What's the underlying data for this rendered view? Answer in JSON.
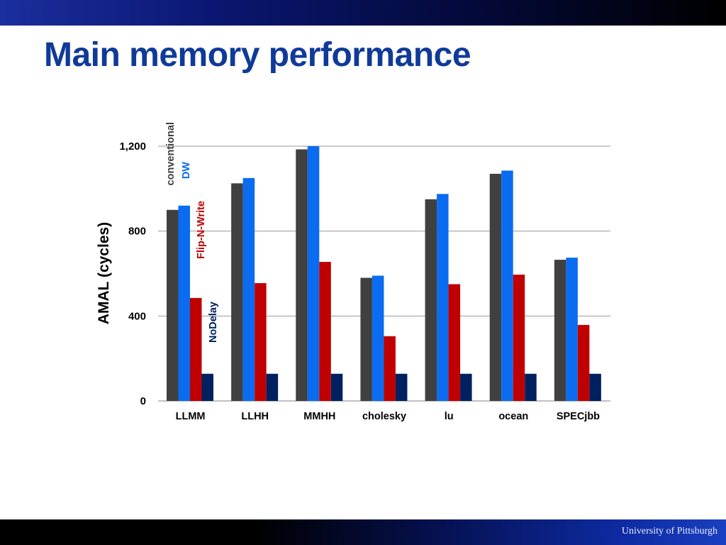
{
  "slide": {
    "title": "Main memory performance",
    "footer": "University of Pittsburgh"
  },
  "chart_data": {
    "type": "bar",
    "title": "",
    "xlabel": "",
    "ylabel": "AMAL (cycles)",
    "ylim": [
      0,
      1200
    ],
    "yticks": [
      0,
      400,
      800,
      1200
    ],
    "ytick_labels": [
      "0",
      "400",
      "800",
      "1,200"
    ],
    "grid": true,
    "legend": "series names printed vertically beside the first category group",
    "categories": [
      "LLMM",
      "LLHH",
      "MMHH",
      "cholesky",
      "lu",
      "ocean",
      "SPECjbb"
    ],
    "series": [
      {
        "name": "conventional",
        "color": "#404040",
        "values": [
          900,
          1025,
          1185,
          580,
          950,
          1070,
          665
        ]
      },
      {
        "name": "DW",
        "color": "#0a6cf0",
        "values": [
          920,
          1050,
          1200,
          590,
          975,
          1085,
          675
        ]
      },
      {
        "name": "Flip-N-Write",
        "color": "#c00000",
        "values": [
          485,
          555,
          655,
          305,
          550,
          595,
          358
        ]
      },
      {
        "name": "NoDelay",
        "color": "#002060",
        "values": [
          128,
          128,
          128,
          128,
          128,
          128,
          128
        ]
      }
    ]
  }
}
